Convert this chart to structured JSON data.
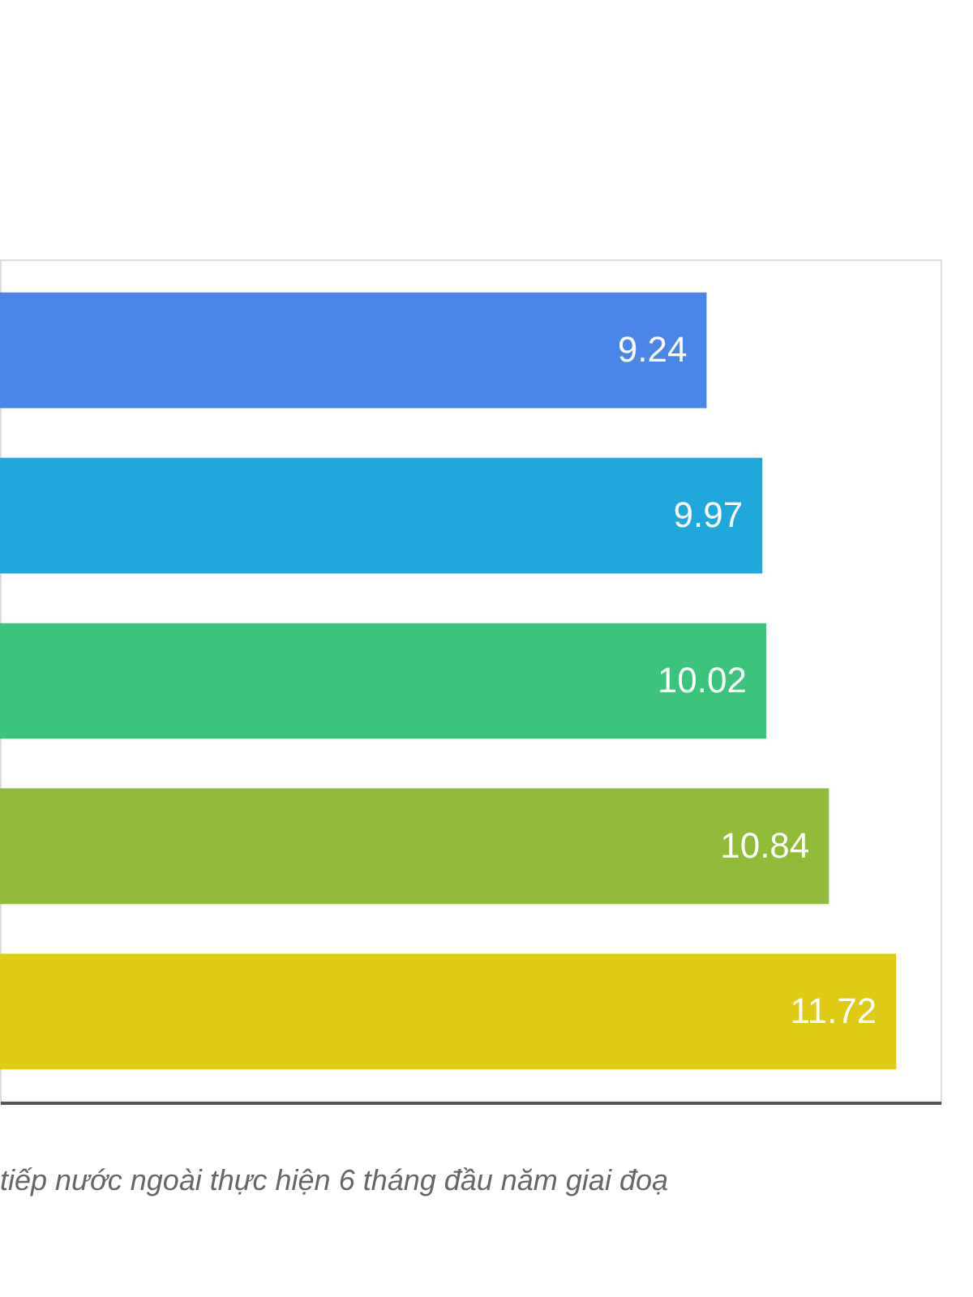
{
  "chart_data": {
    "type": "bar",
    "orientation": "horizontal",
    "categories": [
      null,
      null,
      null,
      null,
      null
    ],
    "values": [
      9.24,
      9.97,
      10.02,
      10.84,
      11.72
    ],
    "colors": [
      "#4a86e8",
      "#1fa8dc",
      "#3cc47c",
      "#8fbb38",
      "#dfcb14"
    ],
    "xlim": [
      0,
      12.3
    ],
    "data_labels": true,
    "tick_labels": false,
    "grid": false,
    "annotations": [
      "tiếp nước ngoài thực hiện 6 tháng đầu năm giai đoạ"
    ]
  }
}
